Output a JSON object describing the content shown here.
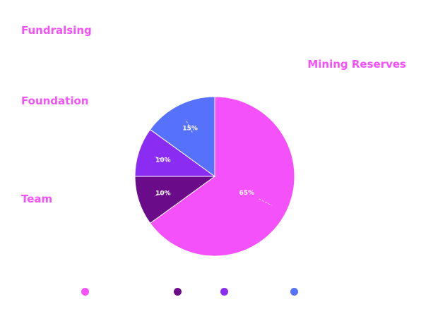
{
  "chart_data": {
    "type": "pie",
    "slices": [
      {
        "label": "Mining Reserves",
        "value": 65,
        "value_label": "65%",
        "color": "#f551fb"
      },
      {
        "label": "Team",
        "value": 10,
        "value_label": "10%",
        "color": "#6a0b89"
      },
      {
        "label": "Foundation",
        "value": 10,
        "value_label": "10%",
        "color": "#8b2cf3"
      },
      {
        "label": "Fundralsing",
        "value": 15,
        "value_label": "15%",
        "color": "#5671fb"
      }
    ],
    "legend_position": "bottom",
    "label_color": "#f551fb"
  }
}
